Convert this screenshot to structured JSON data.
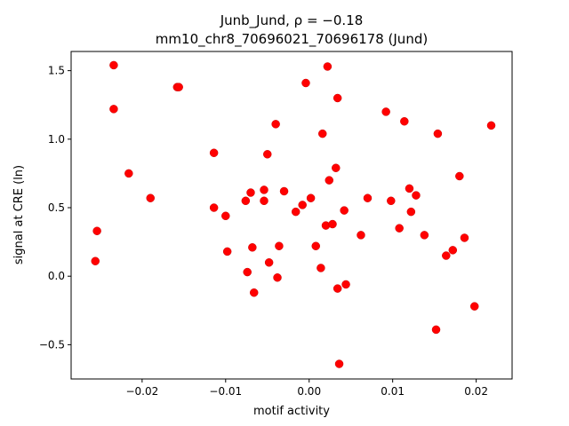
{
  "chart_data": {
    "type": "scatter",
    "title_line1": "Junb_Jund, ρ = −0.18",
    "title_line2": "mm10_chr8_70696021_70696178 (Jund)",
    "xlabel": "motif activity",
    "ylabel": "signal at CRE (ln)",
    "xlim": [
      -0.0285,
      0.0243
    ],
    "ylim": [
      -0.75,
      1.64
    ],
    "xticks": [
      {
        "value": -0.02,
        "label": "−0.02"
      },
      {
        "value": -0.01,
        "label": "−0.01"
      },
      {
        "value": 0.0,
        "label": "0.00"
      },
      {
        "value": 0.01,
        "label": "0.01"
      },
      {
        "value": 0.02,
        "label": "0.02"
      }
    ],
    "yticks": [
      {
        "value": -0.5,
        "label": "−0.5"
      },
      {
        "value": 0.0,
        "label": "0.0"
      },
      {
        "value": 0.5,
        "label": "0.5"
      },
      {
        "value": 1.0,
        "label": "1.0"
      },
      {
        "value": 1.5,
        "label": "1.5"
      }
    ],
    "grid": false,
    "marker_color": "#ff0000",
    "marker_edge_color": "#cc0000",
    "points": [
      {
        "x": -0.0234,
        "y": 1.54
      },
      {
        "x": -0.0234,
        "y": 1.22
      },
      {
        "x": -0.0158,
        "y": 1.38
      },
      {
        "x": -0.0156,
        "y": 1.38
      },
      {
        "x": -0.0216,
        "y": 0.75
      },
      {
        "x": -0.019,
        "y": 0.57
      },
      {
        "x": -0.0254,
        "y": 0.33
      },
      {
        "x": -0.0256,
        "y": 0.11
      },
      {
        "x": -0.0114,
        "y": 0.9
      },
      {
        "x": -0.0114,
        "y": 0.5
      },
      {
        "x": -0.01,
        "y": 0.44
      },
      {
        "x": -0.0098,
        "y": 0.18
      },
      {
        "x": -0.0076,
        "y": 0.55
      },
      {
        "x": -0.007,
        "y": 0.61
      },
      {
        "x": -0.0074,
        "y": 0.03
      },
      {
        "x": -0.0068,
        "y": 0.21
      },
      {
        "x": -0.0066,
        "y": -0.12
      },
      {
        "x": -0.0054,
        "y": 0.63
      },
      {
        "x": -0.0054,
        "y": 0.55
      },
      {
        "x": -0.005,
        "y": 0.89
      },
      {
        "x": -0.0048,
        "y": 0.1
      },
      {
        "x": -0.004,
        "y": 1.11
      },
      {
        "x": -0.0036,
        "y": 0.22
      },
      {
        "x": -0.0038,
        "y": -0.01
      },
      {
        "x": -0.003,
        "y": 0.62
      },
      {
        "x": -0.0016,
        "y": 0.47
      },
      {
        "x": -0.0008,
        "y": 0.52
      },
      {
        "x": -0.0004,
        "y": 1.41
      },
      {
        "x": 0.0002,
        "y": 0.57
      },
      {
        "x": 0.0008,
        "y": 0.22
      },
      {
        "x": 0.0014,
        "y": 0.06
      },
      {
        "x": 0.0016,
        "y": 1.04
      },
      {
        "x": 0.002,
        "y": 0.37
      },
      {
        "x": 0.0022,
        "y": 1.53
      },
      {
        "x": 0.0024,
        "y": 0.7
      },
      {
        "x": 0.0028,
        "y": 0.38
      },
      {
        "x": 0.0032,
        "y": 0.79
      },
      {
        "x": 0.0034,
        "y": 1.3
      },
      {
        "x": 0.0034,
        "y": -0.09
      },
      {
        "x": 0.0036,
        "y": -0.64
      },
      {
        "x": 0.0042,
        "y": 0.48
      },
      {
        "x": 0.0044,
        "y": -0.06
      },
      {
        "x": 0.0062,
        "y": 0.3
      },
      {
        "x": 0.007,
        "y": 0.57
      },
      {
        "x": 0.0092,
        "y": 1.2
      },
      {
        "x": 0.0098,
        "y": 0.55
      },
      {
        "x": 0.0108,
        "y": 0.35
      },
      {
        "x": 0.0114,
        "y": 1.13
      },
      {
        "x": 0.012,
        "y": 0.64
      },
      {
        "x": 0.0122,
        "y": 0.47
      },
      {
        "x": 0.0128,
        "y": 0.59
      },
      {
        "x": 0.0138,
        "y": 0.3
      },
      {
        "x": 0.0152,
        "y": -0.39
      },
      {
        "x": 0.0154,
        "y": 1.04
      },
      {
        "x": 0.0164,
        "y": 0.15
      },
      {
        "x": 0.0172,
        "y": 0.19
      },
      {
        "x": 0.018,
        "y": 0.73
      },
      {
        "x": 0.0186,
        "y": 0.28
      },
      {
        "x": 0.0198,
        "y": -0.22
      },
      {
        "x": 0.0218,
        "y": 1.1
      }
    ]
  }
}
